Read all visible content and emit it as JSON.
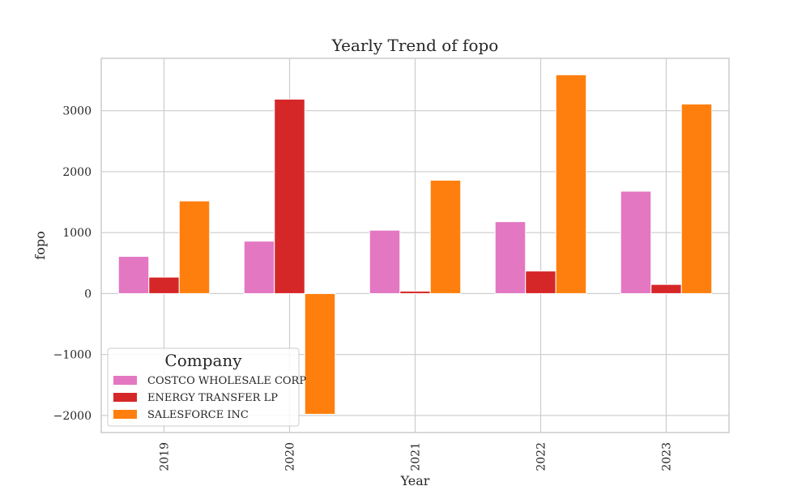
{
  "chart_data": {
    "type": "bar",
    "title": "Yearly Trend of fopo",
    "xlabel": "Year",
    "ylabel": "fopo",
    "categories": [
      "2019",
      "2020",
      "2021",
      "2022",
      "2023"
    ],
    "series": [
      {
        "name": "COSTCO WHOLESALE CORP",
        "color": "#e377c2",
        "values": [
          610,
          860,
          1040,
          1180,
          1680
        ]
      },
      {
        "name": "ENERGY TRANSFER LP",
        "color": "#d62728",
        "values": [
          270,
          3190,
          40,
          370,
          150
        ]
      },
      {
        "name": "SALESFORCE INC",
        "color": "#ff7f0e",
        "values": [
          1520,
          -1980,
          1860,
          3590,
          3110
        ]
      }
    ],
    "ylim": [
      -2280,
      3860
    ],
    "yticks": [
      -2000,
      -1000,
      0,
      1000,
      2000,
      3000
    ],
    "ytick_labels": [
      "−2000",
      "−1000",
      "0",
      "1000",
      "2000",
      "3000"
    ],
    "grid": true,
    "legend": {
      "title": "Company",
      "placement": "lower-left"
    }
  }
}
